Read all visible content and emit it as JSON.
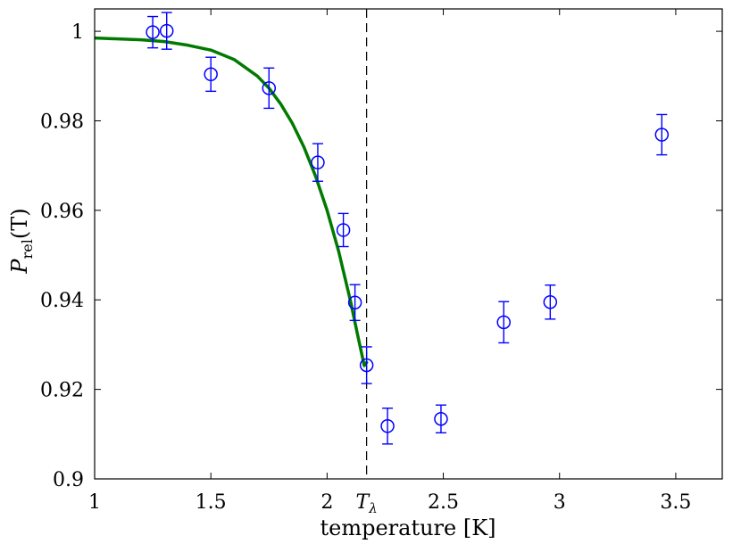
{
  "chart_data": {
    "type": "scatter",
    "xlabel": "temperature [K]",
    "ylabel": {
      "symbol": "P",
      "subscript": "rel",
      "argument": "(T)"
    },
    "xlim": [
      1,
      3.7
    ],
    "ylim": [
      0.9,
      1.005
    ],
    "xticks": [
      1,
      1.5,
      2,
      2.5,
      3,
      3.5
    ],
    "xtick_labels": [
      "1",
      "1.5",
      "2",
      "2.5",
      "3",
      "3.5"
    ],
    "yticks": [
      0.9,
      0.92,
      0.94,
      0.96,
      0.98,
      1.0
    ],
    "ytick_labels": [
      "0.9",
      "0.92",
      "0.94",
      "0.96",
      "0.98",
      "1"
    ],
    "special_tick": {
      "x": 2.17,
      "symbol": "T",
      "subscript": "λ"
    },
    "vline": {
      "x": 2.17,
      "style": "dashed",
      "color": "#000000"
    },
    "series": [
      {
        "kind": "errorbar",
        "marker": "circle-open",
        "color": "#0000ff",
        "points": [
          {
            "x": 1.25,
            "y": 0.9998,
            "err": 0.0035
          },
          {
            "x": 1.31,
            "y": 1.0001,
            "err": 0.0041
          },
          {
            "x": 1.5,
            "y": 0.9904,
            "err": 0.0038
          },
          {
            "x": 1.75,
            "y": 0.9873,
            "err": 0.0045
          },
          {
            "x": 1.96,
            "y": 0.9707,
            "err": 0.0042
          },
          {
            "x": 2.07,
            "y": 0.9556,
            "err": 0.0037
          },
          {
            "x": 2.12,
            "y": 0.9394,
            "err": 0.004
          },
          {
            "x": 2.17,
            "y": 0.9254,
            "err": 0.0041
          },
          {
            "x": 2.26,
            "y": 0.9118,
            "err": 0.004
          },
          {
            "x": 2.49,
            "y": 0.9134,
            "err": 0.0031
          },
          {
            "x": 2.76,
            "y": 0.935,
            "err": 0.0046
          },
          {
            "x": 2.96,
            "y": 0.9395,
            "err": 0.0038
          },
          {
            "x": 3.44,
            "y": 0.9769,
            "err": 0.0045
          }
        ]
      },
      {
        "kind": "line",
        "color": "#007a00",
        "x": [
          1.0,
          1.1,
          1.2,
          1.3,
          1.4,
          1.5,
          1.6,
          1.7,
          1.75,
          1.8,
          1.85,
          1.9,
          1.95,
          2.0,
          2.05,
          2.1,
          2.13,
          2.16,
          2.17
        ],
        "y": [
          0.9985,
          0.9983,
          0.9981,
          0.9977,
          0.9969,
          0.9958,
          0.9937,
          0.99,
          0.9873,
          0.9838,
          0.9795,
          0.9742,
          0.9677,
          0.96,
          0.9508,
          0.9399,
          0.9325,
          0.9253,
          0.926
        ]
      }
    ]
  }
}
